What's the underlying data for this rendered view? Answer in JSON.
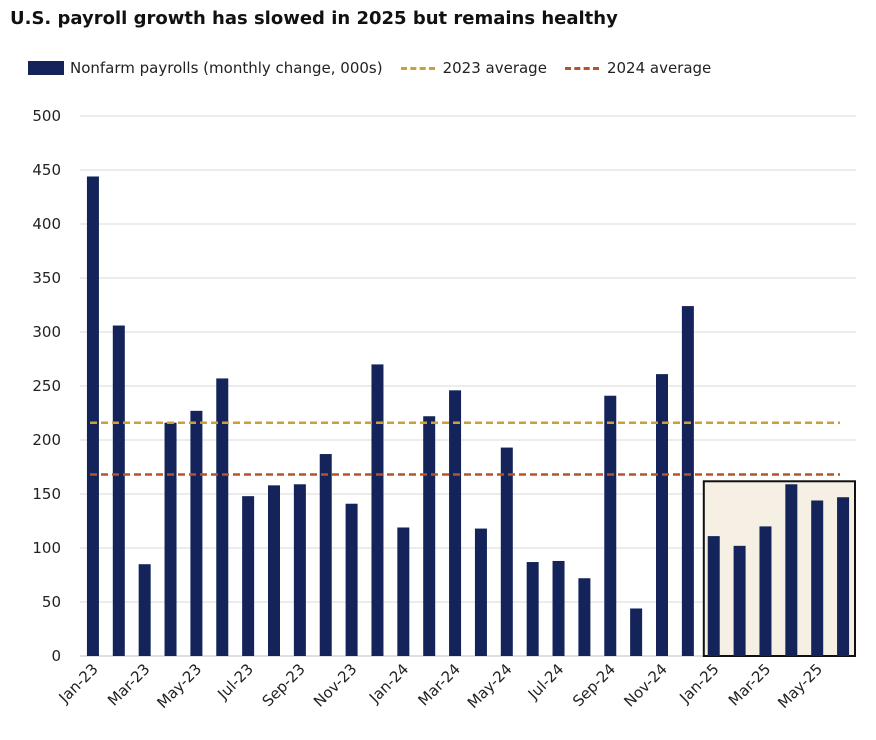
{
  "chart_data": {
    "type": "bar",
    "title": "U.S. payroll growth has slowed in 2025 but remains healthy",
    "xlabel": "",
    "ylabel": "",
    "ylim": [
      0,
      500
    ],
    "yticks": [
      0,
      50,
      100,
      150,
      200,
      250,
      300,
      350,
      400,
      450,
      500
    ],
    "grid": true,
    "legend_position": "top-left",
    "categories": [
      "Jan-23",
      "Feb-23",
      "Mar-23",
      "Apr-23",
      "May-23",
      "Jun-23",
      "Jul-23",
      "Aug-23",
      "Sep-23",
      "Oct-23",
      "Nov-23",
      "Dec-23",
      "Jan-24",
      "Feb-24",
      "Mar-24",
      "Apr-24",
      "May-24",
      "Jun-24",
      "Jul-24",
      "Aug-24",
      "Sep-24",
      "Oct-24",
      "Nov-24",
      "Dec-24",
      "Jan-25",
      "Feb-25",
      "Mar-25",
      "Apr-25",
      "May-25",
      "Jun-25"
    ],
    "x_tick_labels": [
      "Jan-23",
      "Mar-23",
      "May-23",
      "Jul-23",
      "Sep-23",
      "Nov-23",
      "Jan-24",
      "Mar-24",
      "May-24",
      "Jul-24",
      "Sep-24",
      "Nov-24",
      "Jan-25",
      "Mar-25",
      "May-25"
    ],
    "series": [
      {
        "name": "Nonfarm payrolls (monthly change, 000s)",
        "color": "#14245a",
        "values": [
          444,
          306,
          85,
          216,
          227,
          257,
          148,
          158,
          159,
          187,
          141,
          270,
          119,
          222,
          246,
          118,
          193,
          87,
          88,
          72,
          241,
          44,
          261,
          324,
          111,
          102,
          120,
          159,
          144,
          147
        ]
      }
    ],
    "reference_lines": [
      {
        "name": "2023 average",
        "value": 216,
        "color": "#c9a13a",
        "style": "dashed"
      },
      {
        "name": "2024 average",
        "value": 168,
        "color": "#b5532a",
        "style": "dashed"
      }
    ],
    "highlight": {
      "from": "Jan-25",
      "to": "Jun-25",
      "fill": "#f5efe4",
      "border": "#111111"
    }
  }
}
